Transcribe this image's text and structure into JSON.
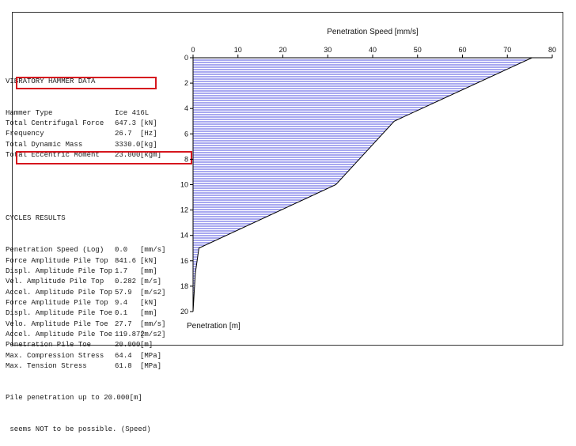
{
  "hammer": {
    "section_title": "VIBRATORY HAMMER DATA",
    "rows": [
      {
        "label": "Hammer Type",
        "value": "Ice 416L",
        "unit": ""
      },
      {
        "label": "Total Centrifugal Force",
        "value": "647.3",
        "unit": "[kN]"
      },
      {
        "label": "Frequency",
        "value": "26.7",
        "unit": "[Hz]"
      },
      {
        "label": "Total Dynamic Mass",
        "value": "3330.0",
        "unit": "[kg]"
      },
      {
        "label": "Total Eccentric Moment",
        "value": "23.000",
        "unit": "[kgm]"
      }
    ]
  },
  "cycles": {
    "section_title": "CYCLES RESULTS",
    "rows": [
      {
        "label": "Penetration Speed (Log)",
        "value": "0.0",
        "unit": "[mm/s]"
      },
      {
        "label": "Force Amplitude Pile Top",
        "value": "841.6",
        "unit": "[kN]"
      },
      {
        "label": "Displ. Amplitude Pile Top",
        "value": "1.7",
        "unit": "[mm]"
      },
      {
        "label": "Vel. Amplitude Pile Top",
        "value": "0.282",
        "unit": "[m/s]"
      },
      {
        "label": "Accel. Amplitude Pile Top",
        "value": "57.9",
        "unit": "[m/s2]"
      },
      {
        "label": "Force Amplitude Pile Top",
        "value": "9.4",
        "unit": "[kN]"
      },
      {
        "label": "Displ. Amplitude Pile Toe",
        "value": "0.1",
        "unit": "[mm]"
      },
      {
        "label": "Velo. Amplitude Pile Toe",
        "value": "27.7",
        "unit": "[mm/s]"
      },
      {
        "label": "Accel. Amplitude Pile Toe",
        "value": "119.872",
        "unit": "[m/s2]"
      },
      {
        "label": "Penetration Pile Toe",
        "value": "20.000",
        "unit": "[m]"
      },
      {
        "label": "Max. Compression Stress",
        "value": "64.4",
        "unit": "[MPa]"
      },
      {
        "label": "Max. Tension Stress",
        "value": "61.8",
        "unit": "[MPa]"
      }
    ],
    "note_line1": "Pile penetration up to 20.000[m]",
    "note_line2": " seems NOT to be possible. (Speed)"
  },
  "colors": {
    "highlight": "#d6161e",
    "fill": "#6f6fe6",
    "axis": "#000000"
  },
  "chart_data": {
    "type": "area",
    "title": "",
    "xlabel": "Penetration Speed [mm/s]",
    "ylabel": "Penetration [m]",
    "xlim": [
      0,
      80
    ],
    "ylim": [
      0,
      20
    ],
    "x_ticks": [
      "0",
      "10",
      "20",
      "30",
      "40",
      "50",
      "60",
      "70",
      "80"
    ],
    "y_ticks": [
      "0",
      "2",
      "4",
      "6",
      "8",
      "10",
      "12",
      "14",
      "16",
      "18",
      "20"
    ],
    "series": [
      {
        "speed": [
          75.5,
          44.8,
          31.8,
          1.3,
          0.5,
          0
        ],
        "depth": [
          0,
          5,
          10,
          15,
          17,
          20
        ]
      }
    ]
  }
}
